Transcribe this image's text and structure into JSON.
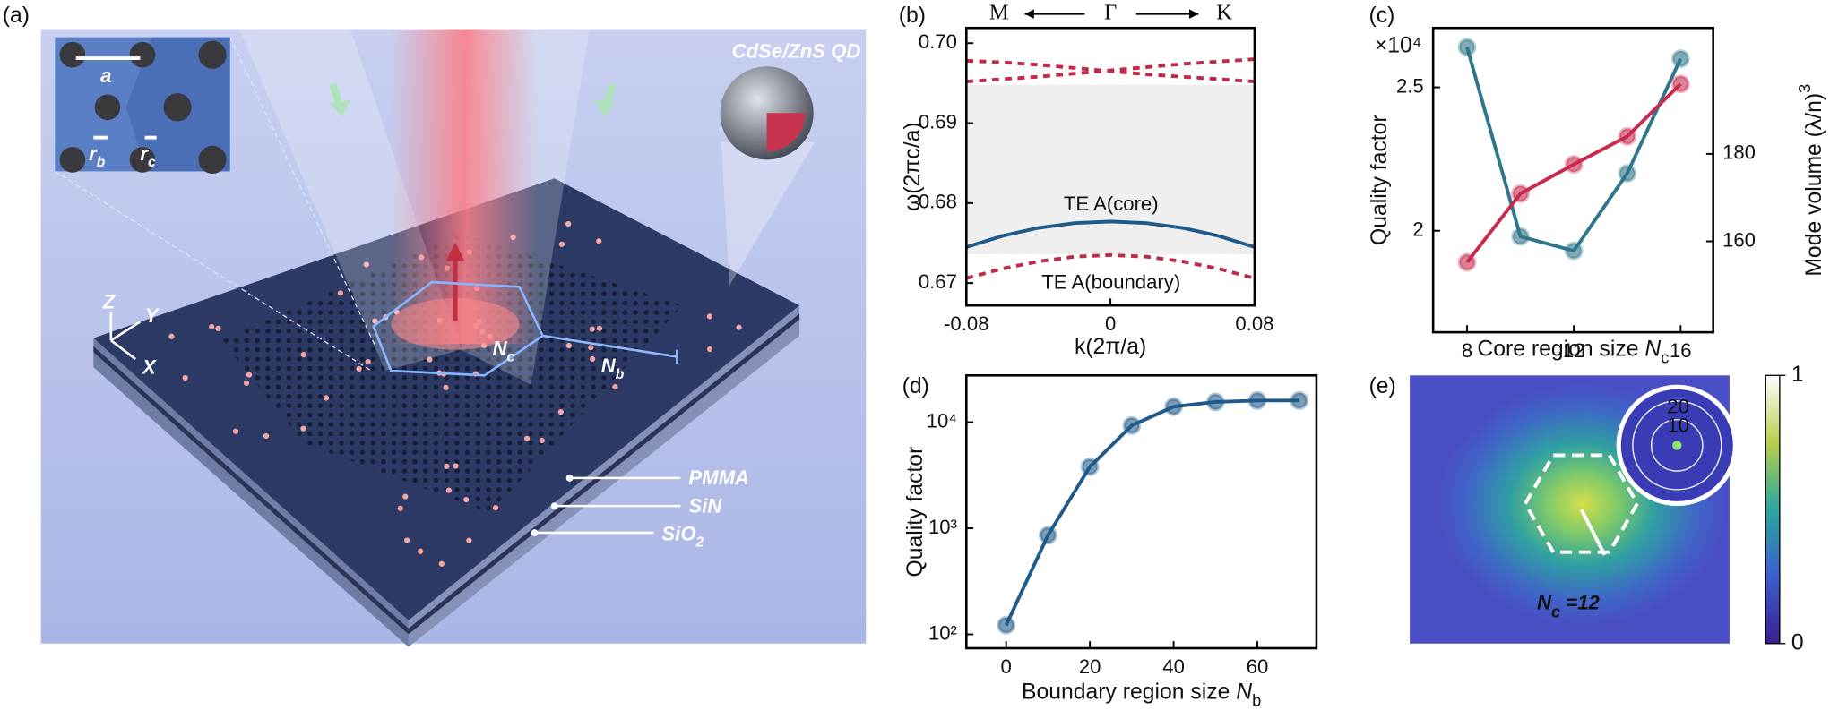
{
  "chart_data": [
    {
      "panel_label": "(b)",
      "type": "line",
      "xlabel": "k(2π/a)",
      "ylabel": "ω(2πc/a)",
      "top_labels": [
        "M",
        "Γ",
        "K"
      ],
      "x": [
        -0.08,
        -0.06,
        -0.04,
        -0.02,
        0,
        0.02,
        0.04,
        0.06,
        0.08
      ],
      "xlim": [
        -0.08,
        0.08
      ],
      "xticks": [
        -0.08,
        0,
        0.08
      ],
      "ylim": [
        0.6672,
        0.7019
      ],
      "yticks": [
        0.67,
        0.68,
        0.69,
        {
          "value": 0.7,
          "label": "0.70"
        }
      ],
      "band": {
        "ylim": [
          0.6736,
          0.6948
        ],
        "color": "#efefef"
      },
      "series": [
        {
          "name": "TE A(core)",
          "color": "#1f5a8a",
          "dash": false,
          "values": [
            0.6745,
            0.6759,
            0.6769,
            0.6775,
            0.6777,
            0.6775,
            0.6769,
            0.6759,
            0.6745
          ]
        },
        {
          "name": "TE A(boundary)",
          "color": "#c0294a",
          "dash": true,
          "values": [
            0.6706,
            0.6718,
            0.6727,
            0.6733,
            0.6735,
            0.6733,
            0.6727,
            0.6718,
            0.6706
          ]
        },
        {
          "color": "#c0294a",
          "dash": true,
          "values": [
            0.6978,
            0.6976,
            0.6973,
            0.6969,
            0.6965,
            0.6961,
            0.6958,
            0.6955,
            0.6952
          ]
        },
        {
          "color": "#c0294a",
          "dash": true,
          "values": [
            0.6952,
            0.6955,
            0.6958,
            0.6962,
            0.6966,
            0.697,
            0.6974,
            0.6977,
            0.698
          ]
        }
      ]
    },
    {
      "panel_label": "(c)",
      "type": "line",
      "markers": true,
      "multiplier": "×10⁴",
      "xlabel": "Core region size ",
      "xlabel_var": "N",
      "xlabel_sub": "c",
      "ylabel": "Quality factor",
      "y2label": "Mode volume (λ/n)",
      "y2label_sup": "3",
      "x": [
        8,
        10,
        12,
        14,
        16
      ],
      "xlim": [
        6.73,
        17.22
      ],
      "xticks": [
        8,
        12,
        16
      ],
      "ylim": [
        1.646,
        2.707
      ],
      "yticks": [
        2,
        2.5
      ],
      "y2lim": [
        139.2,
        208.8
      ],
      "y2ticks": [
        160,
        180
      ],
      "series": [
        {
          "color": "#2e7689",
          "values": [
            2.64,
            1.98,
            1.93,
            2.2,
            2.6
          ]
        },
        {
          "color": "#c8294e",
          "axis": "y2",
          "values": [
            155.2,
            170.9,
            177.6,
            184,
            196
          ]
        }
      ]
    },
    {
      "panel_label": "(d)",
      "type": "line",
      "markers": true,
      "log_y": true,
      "xlabel": "Boundary region size ",
      "xlabel_var": "N",
      "xlabel_sub": "b",
      "ylabel": "Quality factor",
      "x": [
        0,
        10,
        20,
        30,
        40,
        50,
        60,
        70
      ],
      "xlim": [
        -9.5,
        74.1
      ],
      "xticks": [
        0,
        20,
        40,
        60
      ],
      "ylim": [
        74,
        27600
      ],
      "yticks": [
        {
          "value": 100,
          "label": "10²"
        },
        {
          "value": 1000,
          "label": "10³"
        },
        {
          "value": 10000,
          "label": "10⁴"
        }
      ],
      "series": [
        {
          "color": "#1f5a8a",
          "values": [
            122,
            860,
            3800,
            9300,
            14000,
            15500,
            16000,
            16000
          ]
        }
      ]
    },
    {
      "panel_label": "(e)",
      "type": "heatmap",
      "annotation": "N",
      "annotation_sub": "c",
      "annotation_rest": " =12",
      "inset_labels": [
        "20",
        "10"
      ],
      "colorbar": {
        "lim": [
          0,
          1
        ],
        "ticks": [
          0,
          1
        ]
      }
    }
  ],
  "illustration": {
    "panel_label": "(a)",
    "qd": "CdSe/ZnS QD",
    "period": "a",
    "radius_b": {
      "text": "r",
      "sub": "b"
    },
    "radius_c": {
      "text": "r",
      "sub": "c"
    },
    "core": {
      "text": "N",
      "sub": "c"
    },
    "boundary": {
      "text": "N",
      "sub": "b"
    },
    "axes": [
      "Z",
      "Y",
      "X"
    ],
    "layers": [
      {
        "text": "PMMA"
      },
      {
        "text": "SiN"
      },
      {
        "text": "SiO",
        "sub": "2"
      }
    ]
  }
}
